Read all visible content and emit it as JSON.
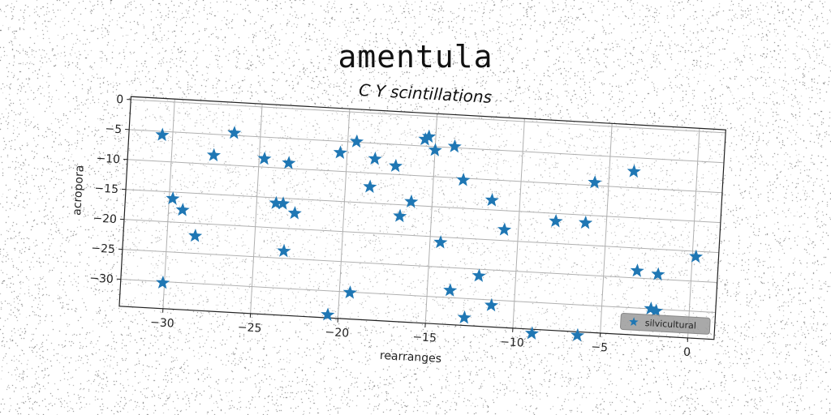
{
  "suptitle": "amentula",
  "chart_data": {
    "type": "scatter",
    "title": "C Y scintillations",
    "xlabel": "rearranges",
    "ylabel": "acropora",
    "xlim": [
      -32.5,
      1.5
    ],
    "ylim": [
      -34.5,
      0.5
    ],
    "xticks": [
      -30,
      -25,
      -20,
      -15,
      -10,
      -5,
      0
    ],
    "yticks": [
      0,
      -5,
      -10,
      -15,
      -20,
      -25,
      -30
    ],
    "grid": true,
    "legend_position": "lower-right",
    "marker": "star",
    "color": "#1f77b4",
    "series": [
      {
        "name": "silvicultural",
        "points": [
          [
            -30.6,
            -5.6
          ],
          [
            -29.8,
            -16.1
          ],
          [
            -29.2,
            -17.9
          ],
          [
            -28.4,
            -22.1
          ],
          [
            -30.1,
            -30.2
          ],
          [
            -27.6,
            -8.5
          ],
          [
            -26.5,
            -4.6
          ],
          [
            -24.7,
            -8.6
          ],
          [
            -23.9,
            -15.9
          ],
          [
            -23.5,
            -15.9
          ],
          [
            -23.3,
            -9.1
          ],
          [
            -22.8,
            -17.4
          ],
          [
            -23.3,
            -23.8
          ],
          [
            -20.4,
            -6.9
          ],
          [
            -20.6,
            -34.0
          ],
          [
            -19.5,
            -4.9
          ],
          [
            -19.4,
            -30.1
          ],
          [
            -18.6,
            -12.3
          ],
          [
            -18.4,
            -7.6
          ],
          [
            -17.2,
            -8.6
          ],
          [
            -16.8,
            -16.9
          ],
          [
            -16.2,
            -14.4
          ],
          [
            -15.6,
            -3.9
          ],
          [
            -15.4,
            -3.4
          ],
          [
            -15.0,
            -5.6
          ],
          [
            -14.4,
            -20.9
          ],
          [
            -13.9,
            -4.8
          ],
          [
            -13.3,
            -10.3
          ],
          [
            -13.7,
            -28.8
          ],
          [
            -12.8,
            -33.2
          ],
          [
            -12.1,
            -26.1
          ],
          [
            -11.6,
            -13.4
          ],
          [
            -11.3,
            -30.9
          ],
          [
            -10.8,
            -18.2
          ],
          [
            -8.9,
            -35.2
          ],
          [
            -7.9,
            -16.3
          ],
          [
            -6.3,
            -35.1
          ],
          [
            -6.2,
            -16.3
          ],
          [
            -5.8,
            -9.5
          ],
          [
            -3.6,
            -7.3
          ],
          [
            -3.1,
            -23.8
          ],
          [
            -2.2,
            -30.0
          ],
          [
            -1.9,
            -30.3
          ],
          [
            -1.9,
            -24.2
          ],
          [
            0.2,
            -20.9
          ]
        ]
      }
    ]
  }
}
